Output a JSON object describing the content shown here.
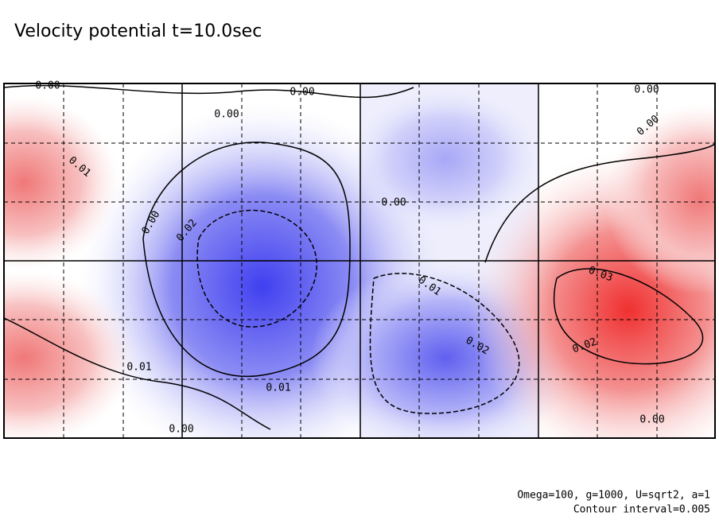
{
  "header": {
    "title": "Velocity potential t=10.0sec"
  },
  "contours": {
    "labels": [
      "0.00",
      "0.00",
      "0.00",
      "0.00",
      "0.00",
      "0.01",
      "0.00",
      "0.02",
      "0.00",
      "0.01",
      "0.02",
      "0.03",
      "0.02",
      "0.01",
      "0.01",
      "0.00",
      "0.00"
    ]
  },
  "footer": {
    "parameters": "Omega=100, g=1000, U=sqrt2, a=1",
    "interval": "Contour interval=0.005"
  }
}
